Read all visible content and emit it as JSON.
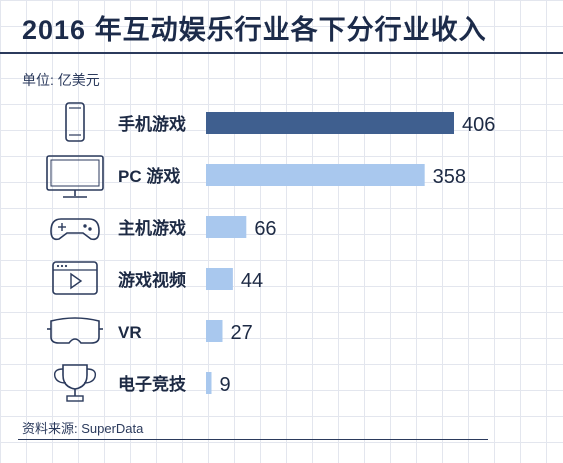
{
  "title": "2016 年互动娱乐行业各下分行业收入",
  "unit_label": "单位: 亿美元",
  "source": "资料来源: SuperData",
  "colors": {
    "highlight": "#3f5f8f",
    "bar": "#a9c8ee",
    "text": "#1d2a44",
    "icon": "#2b3a5c"
  },
  "chart_data": {
    "type": "bar",
    "orientation": "horizontal",
    "title": "2016 年互动娱乐行业各下分行业收入",
    "unit": "亿美元",
    "categories": [
      "手机游戏",
      "PC 游戏",
      "主机游戏",
      "游戏视频",
      "VR",
      "电子竞技"
    ],
    "icons": [
      "smartphone-icon",
      "monitor-icon",
      "gamepad-icon",
      "video-player-icon",
      "vr-headset-icon",
      "trophy-icon"
    ],
    "values": [
      406,
      358,
      66,
      44,
      27,
      9
    ],
    "highlight_index": 0,
    "grid": true,
    "legend": "none"
  }
}
